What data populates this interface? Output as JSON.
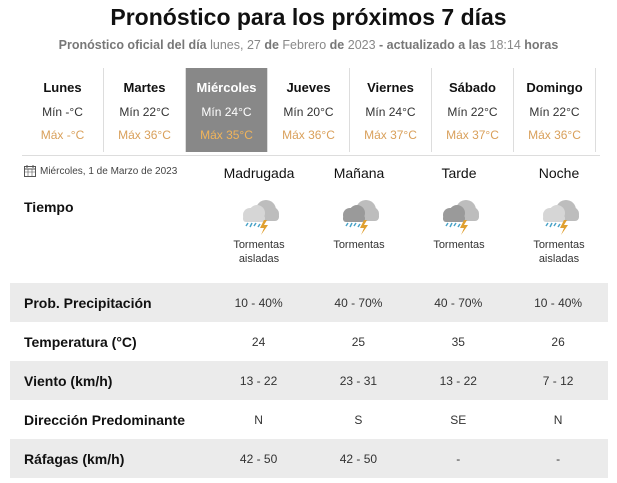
{
  "title": "Pronóstico para los próximos 7 días",
  "subtitle": {
    "p1": "Pronóstico oficial del día",
    "date_weekday": "lunes, 27",
    "de1": "de",
    "month": "Febrero",
    "de2": "de",
    "year": "2023",
    "p2": "- actualizado a las",
    "time": "18:14",
    "p3": "horas"
  },
  "days": [
    {
      "name": "Lunes",
      "min": "Mín -°C",
      "max": "Máx -°C"
    },
    {
      "name": "Martes",
      "min": "Mín 22°C",
      "max": "Máx 36°C"
    },
    {
      "name": "Miércoles",
      "min": "Mín 24°C",
      "max": "Máx 35°C",
      "selected": true
    },
    {
      "name": "Jueves",
      "min": "Mín 20°C",
      "max": "Máx 36°C"
    },
    {
      "name": "Viernes",
      "min": "Mín 24°C",
      "max": "Máx 37°C"
    },
    {
      "name": "Sábado",
      "min": "Mín 22°C",
      "max": "Máx 37°C"
    },
    {
      "name": "Domingo",
      "min": "Mín 22°C",
      "max": "Máx 36°C"
    }
  ],
  "detail": {
    "date": "Miércoles, 1 de Marzo de 2023",
    "periods": [
      "Madrugada",
      "Mañana",
      "Tarde",
      "Noche"
    ],
    "tiempo_label": "Tiempo",
    "weather": [
      {
        "icon": "isolated-storm-icon",
        "line1": "Tormentas",
        "line2": "aisladas"
      },
      {
        "icon": "storm-icon",
        "line1": "Tormentas",
        "line2": ""
      },
      {
        "icon": "storm-icon",
        "line1": "Tormentas",
        "line2": ""
      },
      {
        "icon": "isolated-storm-icon",
        "line1": "Tormentas",
        "line2": "aisladas"
      }
    ],
    "rows": [
      {
        "label": "Prob. Precipitación",
        "values": [
          "10 - 40%",
          "40 - 70%",
          "40 - 70%",
          "10 - 40%"
        ]
      },
      {
        "label": "Temperatura (°C)",
        "values": [
          "24",
          "25",
          "35",
          "26"
        ]
      },
      {
        "label": "Viento (km/h)",
        "values": [
          "13 - 22",
          "23 - 31",
          "13 - 22",
          "7 - 12"
        ]
      },
      {
        "label": "Dirección Predominante",
        "values": [
          "N",
          "S",
          "SE",
          "N"
        ]
      },
      {
        "label": "Ráfagas (km/h)",
        "values": [
          "42 - 50",
          "42 - 50",
          "-",
          "-"
        ]
      }
    ]
  },
  "colors": {
    "max_temp": "#d9a05b",
    "selected_bg": "#888888",
    "row_alt": "#ebebeb"
  }
}
